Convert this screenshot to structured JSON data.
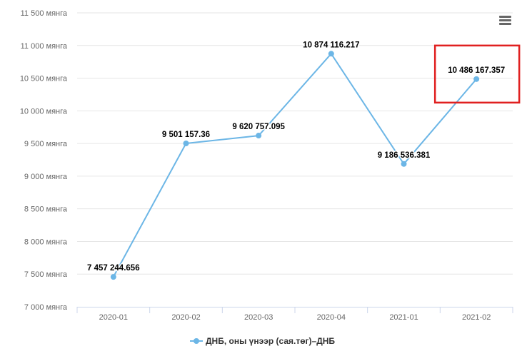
{
  "chart_data": {
    "type": "line",
    "title": "",
    "xlabel": "",
    "ylabel": "",
    "categories": [
      "2020-01",
      "2020-02",
      "2020-03",
      "2020-04",
      "2021-01",
      "2021-02"
    ],
    "series": [
      {
        "name": "ДНБ, оны үнээр (сая.төг)–ДНБ",
        "values": [
          7457244.656,
          9501157.36,
          9620757.095,
          10874116.217,
          9186536.381,
          10486167.357
        ],
        "labels": [
          "7 457 244.656",
          "9 501 157.36",
          "9 620 757.095",
          "10 874 116.217",
          "9 186 536.381",
          "10 486 167.357"
        ],
        "color": "#6cb6e6"
      }
    ],
    "ylim": [
      7000000,
      11500000
    ],
    "yticks": [
      {
        "value": 7000000,
        "label": "7 000 мянга"
      },
      {
        "value": 7500000,
        "label": "7 500 мянга"
      },
      {
        "value": 8000000,
        "label": "8 000 мянга"
      },
      {
        "value": 8500000,
        "label": "8 500 мянга"
      },
      {
        "value": 9000000,
        "label": "9 000 мянга"
      },
      {
        "value": 9500000,
        "label": "9 500 мянга"
      },
      {
        "value": 10000000,
        "label": "10 000 мянга"
      },
      {
        "value": 10500000,
        "label": "10 500 мянга"
      },
      {
        "value": 11000000,
        "label": "11 000 мянга"
      },
      {
        "value": 11500000,
        "label": "11 500 мянга"
      }
    ],
    "grid": true,
    "legend": "bottom-center",
    "highlight_color": "#e02020",
    "highlighted_category": "2021-02"
  },
  "menu": {
    "icon": "hamburger-menu-icon"
  }
}
